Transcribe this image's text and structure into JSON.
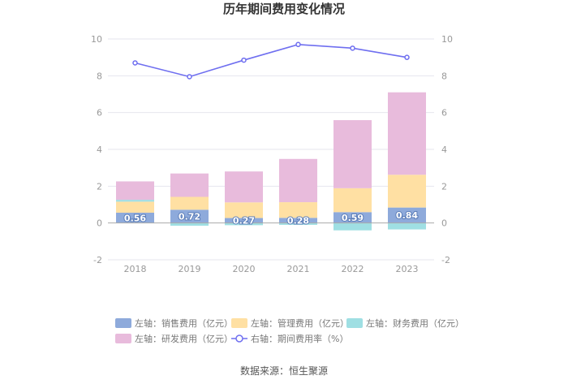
{
  "chart_data": {
    "type": "bar",
    "title": "历年期间费用变化情况",
    "categories": [
      "2018",
      "2019",
      "2020",
      "2021",
      "2022",
      "2023"
    ],
    "ylim_left": [
      -2,
      10
    ],
    "ylim_right": [
      -2,
      10
    ],
    "yticks_left": [
      "-2",
      "0",
      "2",
      "4",
      "6",
      "8",
      "10"
    ],
    "yticks_right": [
      "-2",
      "0",
      "2",
      "4",
      "6",
      "8",
      "10"
    ],
    "grid": true,
    "legend_position": "bottom",
    "series": [
      {
        "name": "左轴：销售费用（亿元）",
        "kind": "bar",
        "axis": "left",
        "color": "#8eaadb",
        "values": [
          0.56,
          0.72,
          0.27,
          0.28,
          0.59,
          0.84
        ],
        "labels": [
          "0.56",
          "0.72",
          "0.27",
          "0.28",
          "0.59",
          "0.84"
        ]
      },
      {
        "name": "左轴：管理费用（亿元）",
        "kind": "bar",
        "axis": "left",
        "color": "#ffe0a3",
        "values": [
          0.6,
          0.7,
          0.85,
          0.85,
          1.3,
          1.78
        ]
      },
      {
        "name": "左轴：财务费用（亿元）",
        "kind": "bar",
        "axis": "left",
        "color": "#9fdfe3",
        "values": [
          0.1,
          -0.15,
          -0.12,
          -0.1,
          -0.4,
          -0.35
        ]
      },
      {
        "name": "左轴：研发费用（亿元）",
        "kind": "bar",
        "axis": "left",
        "color": "#e8bbdc",
        "values": [
          1.0,
          1.27,
          1.68,
          2.35,
          3.7,
          4.48
        ]
      },
      {
        "name": "右轴：期间费用率（%）",
        "kind": "line",
        "axis": "right",
        "color": "#6f6ff0",
        "values": [
          8.7,
          7.95,
          8.85,
          9.7,
          9.5,
          9.0
        ]
      }
    ],
    "source": "数据来源：恒生聚源"
  }
}
